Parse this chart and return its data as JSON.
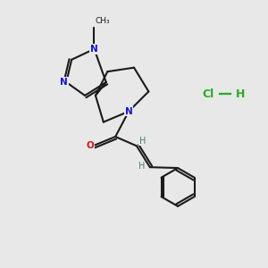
{
  "background_color": "#e8e8e8",
  "bond_color": "#1a1a1a",
  "nitrogen_color": "#1515cc",
  "oxygen_color": "#cc1515",
  "green_color": "#28aa28",
  "figsize": [
    3.0,
    3.0
  ],
  "dpi": 100,
  "xlim": [
    0,
    10
  ],
  "ylim": [
    0,
    10
  ],
  "lw": 1.5
}
